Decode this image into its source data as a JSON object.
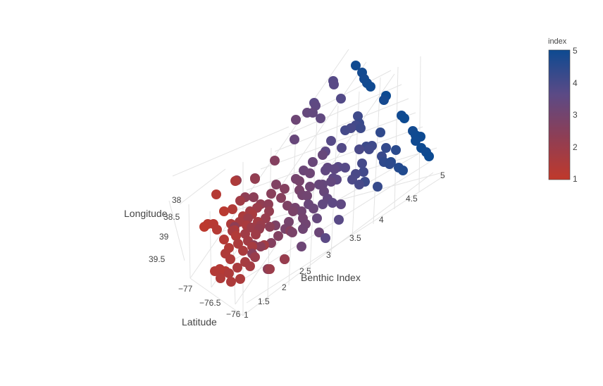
{
  "chart_data": {
    "type": "scatter3d",
    "scene": {
      "xaxis": {
        "title": "Longitude",
        "ticks": [
          "38",
          "38.5",
          "39",
          "39.5"
        ]
      },
      "yaxis": {
        "title": "Latitude",
        "ticks": [
          "−77",
          "−76.5",
          "−76"
        ]
      },
      "zaxis": {
        "title": "Benthic Index",
        "ticks": [
          "1",
          "1.5",
          "2",
          "2.5",
          "3",
          "3.5",
          "4",
          "4.5",
          "5"
        ]
      }
    },
    "color": {
      "title": "index",
      "range": [
        1,
        5
      ],
      "ticks": [
        "1",
        "2",
        "3",
        "4",
        "5"
      ],
      "scale": [
        "#c0392b",
        "#8e3e55",
        "#5b4a86",
        "#0d4a91"
      ]
    },
    "points_note": "",
    "points": [
      [
        1.2,
        295,
        318
      ],
      [
        1.25,
        303,
        318
      ],
      [
        1.1,
        290,
        322
      ],
      [
        1.3,
        308,
        326
      ],
      [
        1.2,
        318,
        300
      ],
      [
        1.4,
        330,
        297
      ],
      [
        1.3,
        307,
        276
      ],
      [
        1.5,
        334,
        257
      ],
      [
        1.35,
        318,
        340
      ],
      [
        1.4,
        325,
        352
      ],
      [
        1.45,
        320,
        360
      ],
      [
        1.5,
        327,
        368
      ],
      [
        1.3,
        320,
        385
      ],
      [
        1.35,
        305,
        385
      ],
      [
        1.45,
        313,
        395
      ],
      [
        1.5,
        328,
        400
      ],
      [
        1.55,
        341,
        396
      ],
      [
        1.6,
        337,
        380
      ],
      [
        1.7,
        348,
        372
      ],
      [
        1.75,
        355,
        378
      ],
      [
        1.6,
        345,
        356
      ],
      [
        1.8,
        352,
        342
      ],
      [
        1.65,
        330,
        328
      ],
      [
        1.9,
        363,
        333
      ],
      [
        1.7,
        340,
        315
      ],
      [
        1.85,
        355,
        300
      ],
      [
        2.0,
        365,
        295
      ],
      [
        1.95,
        352,
        310
      ],
      [
        2.05,
        370,
        320
      ],
      [
        2.1,
        377,
        310
      ],
      [
        2.2,
        382,
        300
      ],
      [
        2.25,
        370,
        290
      ],
      [
        1.85,
        341,
        285
      ],
      [
        2.3,
        348,
        280
      ],
      [
        2.4,
        360,
        280
      ],
      [
        2.35,
        381,
        290
      ],
      [
        2.5,
        385,
        275
      ],
      [
        2.55,
        399,
        281
      ],
      [
        2.6,
        404,
        268
      ],
      [
        2.7,
        392,
        262
      ],
      [
        2.3,
        333,
        322
      ],
      [
        2.4,
        360,
        348
      ],
      [
        2.5,
        358,
        360
      ],
      [
        2.35,
        370,
        350
      ],
      [
        2.6,
        385,
        345
      ],
      [
        2.2,
        362,
        254
      ],
      [
        2.45,
        380,
        382
      ],
      [
        2.7,
        404,
        368
      ],
      [
        2.8,
        391,
        320
      ],
      [
        2.9,
        405,
        325
      ],
      [
        2.95,
        410,
        315
      ],
      [
        3.0,
        419,
        295
      ],
      [
        3.1,
        428,
        300
      ],
      [
        3.15,
        430,
        325
      ],
      [
        3.2,
        428,
        350
      ],
      [
        2.85,
        415,
        330
      ],
      [
        3.05,
        430,
        310
      ],
      [
        3.3,
        438,
        290
      ],
      [
        3.4,
        450,
        310
      ],
      [
        3.25,
        453,
        330
      ],
      [
        3.5,
        458,
        290
      ],
      [
        3.35,
        460,
        272
      ],
      [
        3.45,
        465,
        282
      ],
      [
        3.6,
        472,
        288
      ],
      [
        3.7,
        481,
        312
      ],
      [
        3.55,
        484,
        290
      ],
      [
        3.65,
        462,
        338
      ],
      [
        3.3,
        445,
        296
      ],
      [
        3.1,
        436,
        278
      ],
      [
        2.9,
        425,
        270
      ],
      [
        3.0,
        420,
        254
      ],
      [
        3.2,
        440,
        246
      ],
      [
        3.3,
        444,
        230
      ],
      [
        3.35,
        458,
        220
      ],
      [
        3.5,
        465,
        238
      ],
      [
        3.45,
        470,
        258
      ],
      [
        3.6,
        478,
        255
      ],
      [
        3.4,
        458,
        262
      ],
      [
        3.5,
        462,
        242
      ],
      [
        3.25,
        431,
        242
      ],
      [
        3.55,
        475,
        240
      ],
      [
        3.7,
        480,
        237
      ],
      [
        3.75,
        490,
        238
      ],
      [
        3.8,
        485,
        210
      ],
      [
        3.75,
        470,
        200
      ],
      [
        3.6,
        462,
        215
      ],
      [
        3.9,
        500,
        255
      ],
      [
        4.0,
        510,
        262
      ],
      [
        3.95,
        505,
        247
      ],
      [
        4.1,
        516,
        244
      ],
      [
        4.05,
        514,
        232
      ],
      [
        3.95,
        510,
        212
      ],
      [
        4.2,
        520,
        208
      ],
      [
        4.1,
        524,
        212
      ],
      [
        4.15,
        528,
        207
      ],
      [
        4.05,
        490,
        185
      ],
      [
        4.0,
        498,
        182
      ],
      [
        4.1,
        505,
        178
      ],
      [
        4.15,
        508,
        165
      ],
      [
        4.25,
        510,
        175
      ],
      [
        4.2,
        512,
        182
      ],
      [
        4.4,
        540,
        188
      ],
      [
        4.3,
        536,
        265
      ],
      [
        4.2,
        518,
        258
      ],
      [
        4.25,
        542,
        222
      ],
      [
        4.35,
        548,
        210
      ],
      [
        4.4,
        545,
        230
      ],
      [
        4.45,
        553,
        233
      ],
      [
        4.5,
        562,
        213
      ],
      [
        4.55,
        555,
        230
      ],
      [
        4.6,
        566,
        238
      ],
      [
        4.65,
        572,
        242
      ],
      [
        3.2,
        420,
        170
      ],
      [
        3.4,
        436,
        160
      ],
      [
        3.45,
        444,
        160
      ],
      [
        3.55,
        448,
        150
      ],
      [
        3.5,
        455,
        168
      ],
      [
        3.65,
        446,
        146
      ],
      [
        3.7,
        474,
        120
      ],
      [
        3.8,
        484,
        140
      ],
      [
        3.75,
        473,
        115
      ],
      [
        3.35,
        418,
        198
      ],
      [
        2.6,
        390,
        228
      ],
      [
        2.4,
        362,
        253
      ],
      [
        2.3,
        336,
        256
      ],
      [
        4.95,
        505,
        93
      ],
      [
        4.9,
        514,
        103
      ],
      [
        4.85,
        517,
        112
      ],
      [
        4.9,
        521,
        118
      ],
      [
        4.95,
        526,
        123
      ],
      [
        5.0,
        548,
        136
      ],
      [
        4.85,
        545,
        142
      ],
      [
        4.95,
        570,
        164
      ],
      [
        5.0,
        574,
        168
      ],
      [
        4.9,
        586,
        186
      ],
      [
        4.95,
        590,
        192
      ],
      [
        5.0,
        597,
        194
      ],
      [
        4.95,
        590,
        200
      ],
      [
        5.0,
        598,
        210
      ],
      [
        4.95,
        605,
        216
      ],
      [
        5.0,
        609,
        222
      ],
      [
        1.4,
        335,
        335
      ],
      [
        1.6,
        350,
        320
      ],
      [
        1.55,
        345,
        307
      ],
      [
        1.65,
        358,
        304
      ],
      [
        1.75,
        366,
        315
      ],
      [
        1.55,
        338,
        346
      ],
      [
        1.7,
        358,
        350
      ],
      [
        1.8,
        375,
        348
      ],
      [
        2.0,
        383,
        382
      ],
      [
        2.1,
        404,
        368
      ],
      [
        1.35,
        312,
        382
      ],
      [
        1.5,
        325,
        388
      ],
      [
        2.55,
        412,
        328
      ],
      [
        2.75,
        408,
        292
      ],
      [
        3.05,
        429,
        277
      ],
      [
        3.15,
        440,
        265
      ],
      [
        2.95,
        425,
        257
      ],
      [
        3.35,
        453,
        262
      ],
      [
        3.6,
        473,
        253
      ],
      [
        2.4,
        383,
        322
      ],
      [
        2.65,
        395,
        335
      ],
      [
        2.15,
        368,
        325
      ],
      [
        2.85,
        416,
        300
      ],
      [
        3.1,
        434,
        318
      ],
      [
        1.95,
        357,
        323
      ],
      [
        2.05,
        362,
        365
      ],
      [
        1.85,
        348,
        332
      ],
      [
        1.5,
        328,
        318
      ],
      [
        1.45,
        333,
        327
      ]
    ]
  }
}
